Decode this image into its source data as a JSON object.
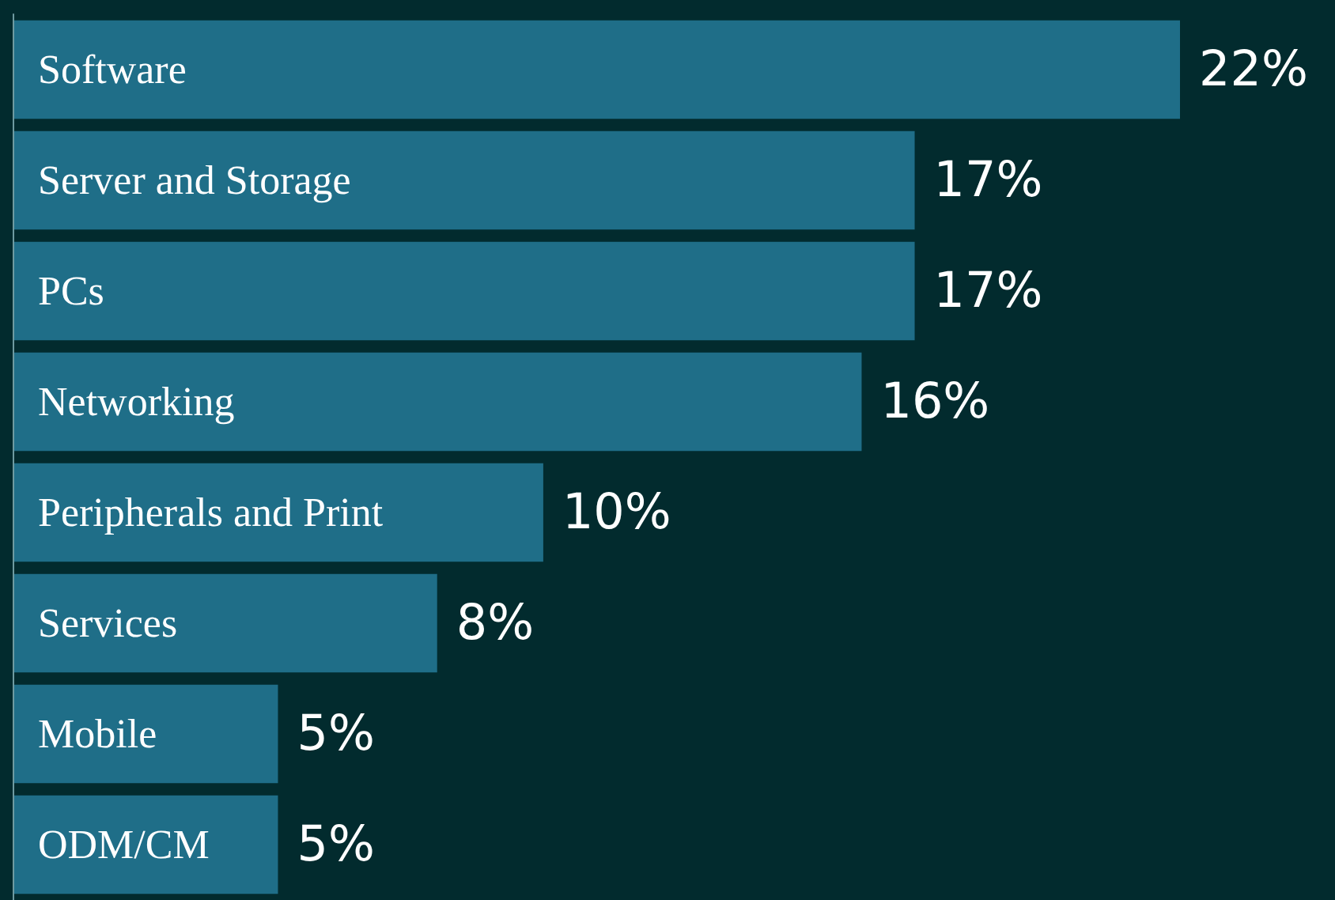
{
  "chart_data": {
    "type": "bar",
    "orientation": "horizontal",
    "categories": [
      "Software",
      "Server and Storage",
      "PCs",
      "Networking",
      "Peripherals and Print",
      "Services",
      "Mobile",
      "ODM/CM"
    ],
    "values": [
      22,
      17,
      17,
      16,
      10,
      8,
      5,
      5
    ],
    "value_labels": [
      "22%",
      "17%",
      "17%",
      "16%",
      "10%",
      "8%",
      "5%",
      "5%"
    ],
    "color": "#1f6e88"
  }
}
